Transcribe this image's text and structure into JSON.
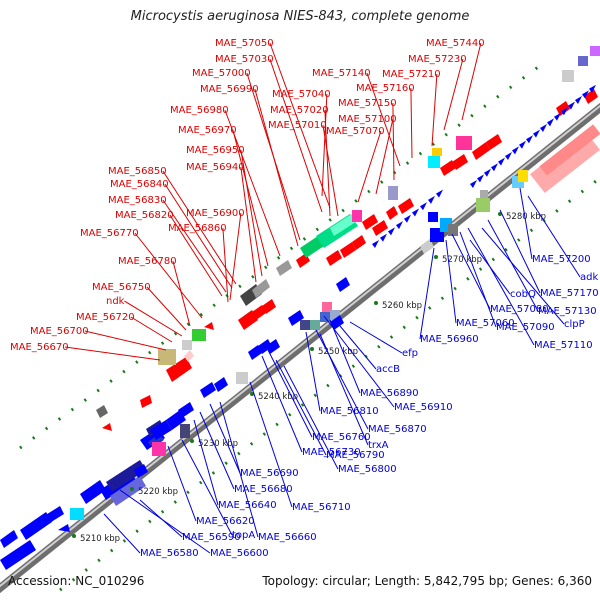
{
  "title": "Microcystis aeruginosa NIES-843, complete genome",
  "footer": {
    "accession": "Accession: NC_010296",
    "summary": "Topology: circular; Length: 5,842,795 bp; Genes: 6,360"
  },
  "colors": {
    "forward_label": "#dd0000",
    "reverse_label": "#0000dd",
    "forward_gene": "#ff0000",
    "reverse_gene": "#0000ff",
    "backbone": "#888888",
    "tick_dot": "#1a7a1a"
  },
  "ticks": [
    {
      "label": "5210 kbp"
    },
    {
      "label": "5220 kbp"
    },
    {
      "label": "5230 kbp"
    },
    {
      "label": "5240 kbp"
    },
    {
      "label": "5250 kbp"
    },
    {
      "label": "5260 kbp"
    },
    {
      "label": "5270 kbp"
    },
    {
      "label": "5280 kbp"
    }
  ],
  "forward_labels": [
    "MAE_57050",
    "MAE_57030",
    "MAE_57000",
    "MAE_56990",
    "MAE_56980",
    "MAE_56970",
    "MAE_56950",
    "MAE_56940",
    "MAE_56850",
    "MAE_56840",
    "MAE_56830",
    "MAE_56820",
    "MAE_56900",
    "MAE_56860",
    "MAE_56770",
    "MAE_56780",
    "MAE_56750",
    "ndk",
    "MAE_56720",
    "MAE_56700",
    "MAE_56670",
    "MAE_57040",
    "MAE_57020",
    "MAE_57010",
    "MAE_57070",
    "MAE_57100",
    "MAE_57150",
    "MAE_57140",
    "MAE_57160",
    "MAE_57210",
    "MAE_57230",
    "MAE_57440"
  ],
  "reverse_labels": [
    "MAE_57200",
    "adk",
    "MAE_57170",
    "MAE_57130",
    "clpP",
    "MAE_57110",
    "MAE_57090",
    "MAE_57080",
    "cobQ",
    "MAE_57060",
    "MAE_56960",
    "efp",
    "accB",
    "MAE_56890",
    "MAE_56910",
    "MAE_56810",
    "MAE_56870",
    "trxA",
    "MAE_56760",
    "MAE_56730",
    "MAE_56790",
    "MAE_56800",
    "MAE_56690",
    "MAE_56680",
    "MAE_56640",
    "MAE_56710",
    "MAE_56620",
    "topA",
    "MAE_56660",
    "MAE_56590",
    "MAE_56580",
    "MAE_56600"
  ]
}
